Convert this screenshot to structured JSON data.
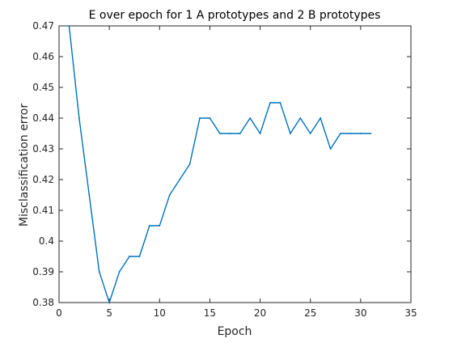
{
  "chart_data": {
    "type": "line",
    "title": "E over epoch for 1 A prototypes and 2 B prototypes",
    "xlabel": "Epoch",
    "ylabel": "Misclassification error",
    "xlim": [
      0,
      35
    ],
    "ylim": [
      0.38,
      0.47
    ],
    "xticks": [
      0,
      5,
      10,
      15,
      20,
      25,
      30,
      35
    ],
    "yticks": [
      0.38,
      0.39,
      0.4,
      0.41,
      0.42,
      0.43,
      0.44,
      0.45,
      0.46,
      0.47
    ],
    "grid": false,
    "series": [
      {
        "color": "#0072bd",
        "x": [
          1,
          2,
          3,
          4,
          5,
          6,
          7,
          8,
          9,
          10,
          11,
          12,
          13,
          14,
          15,
          16,
          17,
          18,
          19,
          20,
          21,
          22,
          23,
          24,
          25,
          26,
          27,
          28,
          29,
          30,
          31
        ],
        "y": [
          0.47,
          0.44,
          0.415,
          0.39,
          0.38,
          0.39,
          0.395,
          0.395,
          0.405,
          0.405,
          0.415,
          0.42,
          0.425,
          0.44,
          0.44,
          0.435,
          0.435,
          0.435,
          0.44,
          0.435,
          0.445,
          0.445,
          0.435,
          0.44,
          0.435,
          0.44,
          0.43,
          0.435,
          0.435,
          0.435,
          0.435
        ]
      }
    ]
  }
}
